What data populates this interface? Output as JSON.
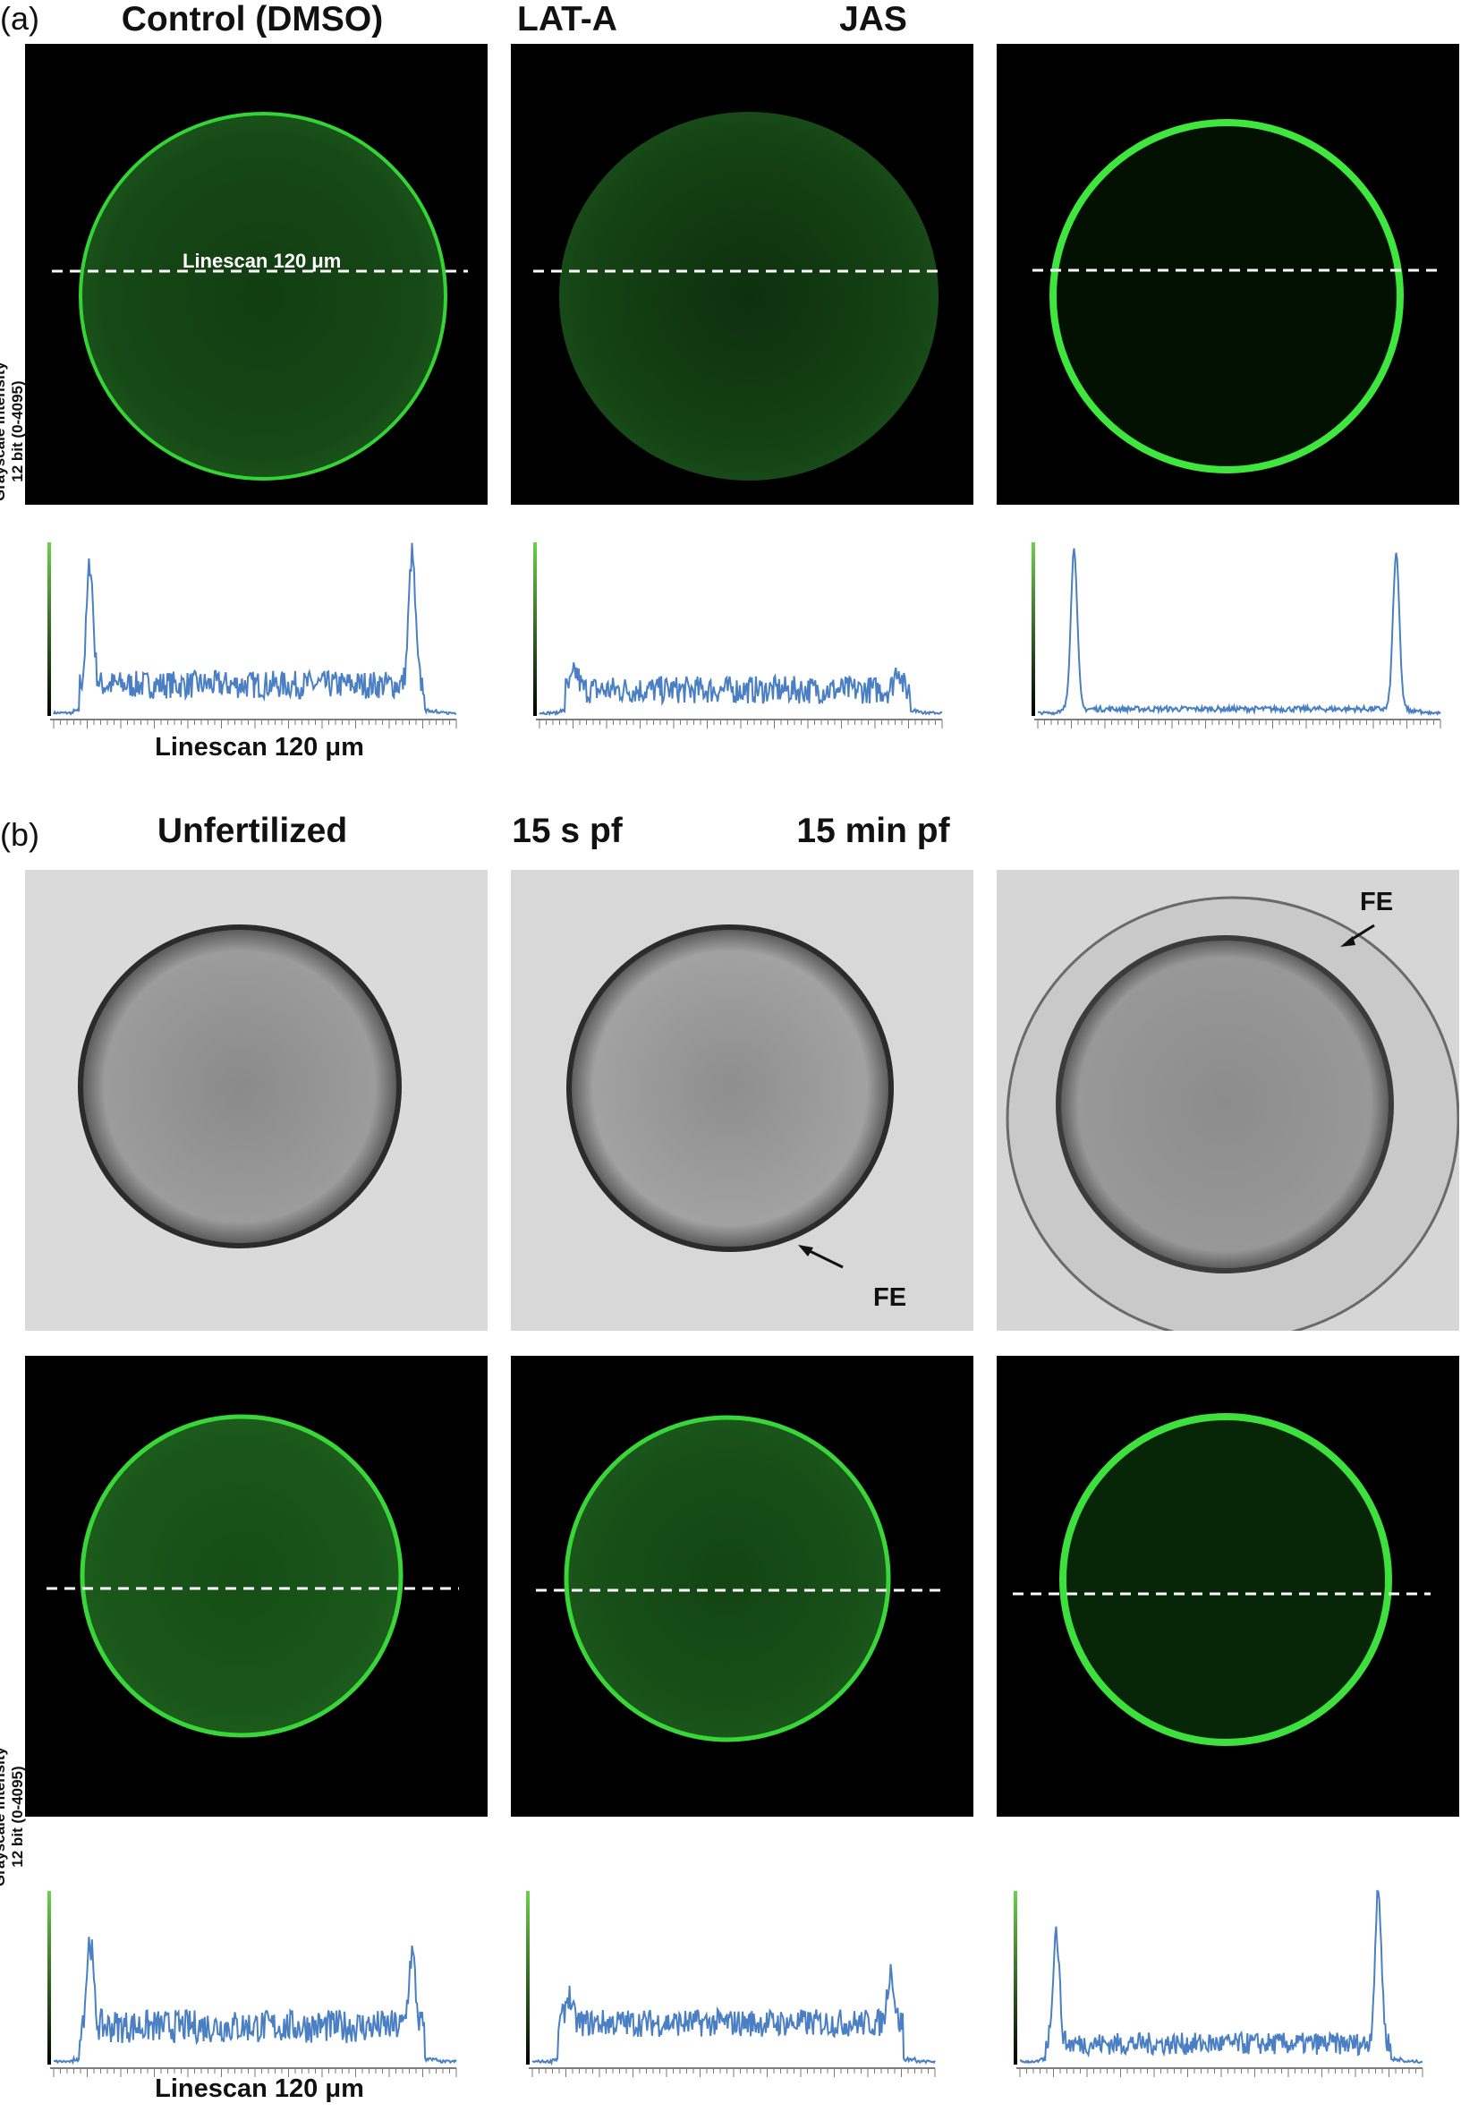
{
  "panels": [
    {
      "label": "(a)",
      "columns": [
        {
          "title": "Control (DMSO)",
          "image_kind": "fluorescence",
          "linescan_label": "Linescan 120 μm",
          "profile": {
            "left_peak": 0.88,
            "right_peak": 0.93,
            "baseline": 0.18,
            "noise": 0.1
          }
        },
        {
          "title": "LAT-A",
          "image_kind": "fluorescence",
          "profile": {
            "left_peak": 0.25,
            "right_peak": 0.28,
            "baseline": 0.15,
            "noise": 0.1
          }
        },
        {
          "title": "JAS",
          "image_kind": "fluorescence",
          "profile": {
            "left_peak": 0.96,
            "right_peak": 0.93,
            "baseline": 0.04,
            "noise": 0.02
          }
        }
      ],
      "y_axis_label_line1": "Grayscale intensity",
      "y_axis_label_line2": "12 bit (0-4095)",
      "x_axis_label": "Linescan 120 μm"
    },
    {
      "label": "(b)",
      "columns": [
        {
          "title": "Unfertilized",
          "image_kind": "brightfield",
          "profile": {
            "left_peak": 0.72,
            "right_peak": 0.64,
            "baseline": 0.22,
            "noise": 0.12
          }
        },
        {
          "title": "15 s pf",
          "image_kind": "brightfield",
          "fe_label": "FE",
          "profile": {
            "left_peak": 0.4,
            "right_peak": 0.55,
            "baseline": 0.24,
            "noise": 0.1
          }
        },
        {
          "title": "15 min pf",
          "image_kind": "brightfield",
          "fe_label": "FE",
          "profile": {
            "left_peak": 0.77,
            "right_peak": 0.99,
            "baseline": 0.12,
            "noise": 0.08
          }
        }
      ],
      "y_axis_label_line1": "Grayscale intensity",
      "y_axis_label_line2": "12 bit (0-4095)",
      "x_axis_label": "Linescan 120 μm"
    }
  ],
  "colors": {
    "trace": "#4a7fc4",
    "membrane_green": "#39e639",
    "cytoplasm_green": "#0d3a0d",
    "gradient_top": "#6cd14a",
    "gradient_bottom": "#000000"
  }
}
